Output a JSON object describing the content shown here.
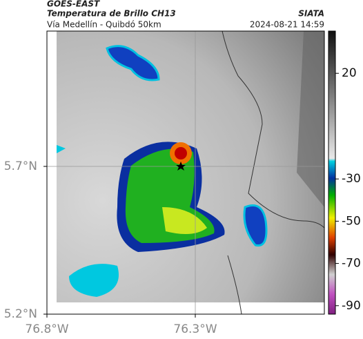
{
  "header": {
    "satellite": "GOES-EAST",
    "product": "Temperatura de Brillo CH13",
    "agency": "SIATA",
    "region": "Vía Medellín - Quibdó 50km",
    "datetime": "2024-08-21 14:59"
  },
  "map": {
    "xlim": [
      -76.8,
      -75.865
    ],
    "ylim": [
      5.2,
      6.158
    ],
    "xticks": [
      {
        "value": -76.8,
        "label": "76.8°W"
      },
      {
        "value": -76.3,
        "label": "76.3°W"
      }
    ],
    "yticks": [
      {
        "value": 5.7,
        "label": "5.7°N"
      },
      {
        "value": 5.2,
        "label": "5.2°N"
      }
    ]
  },
  "colorbar": {
    "lim": [
      -94,
      40
    ],
    "ticks": [
      20,
      -30,
      -50,
      -70,
      -90
    ]
  }
}
